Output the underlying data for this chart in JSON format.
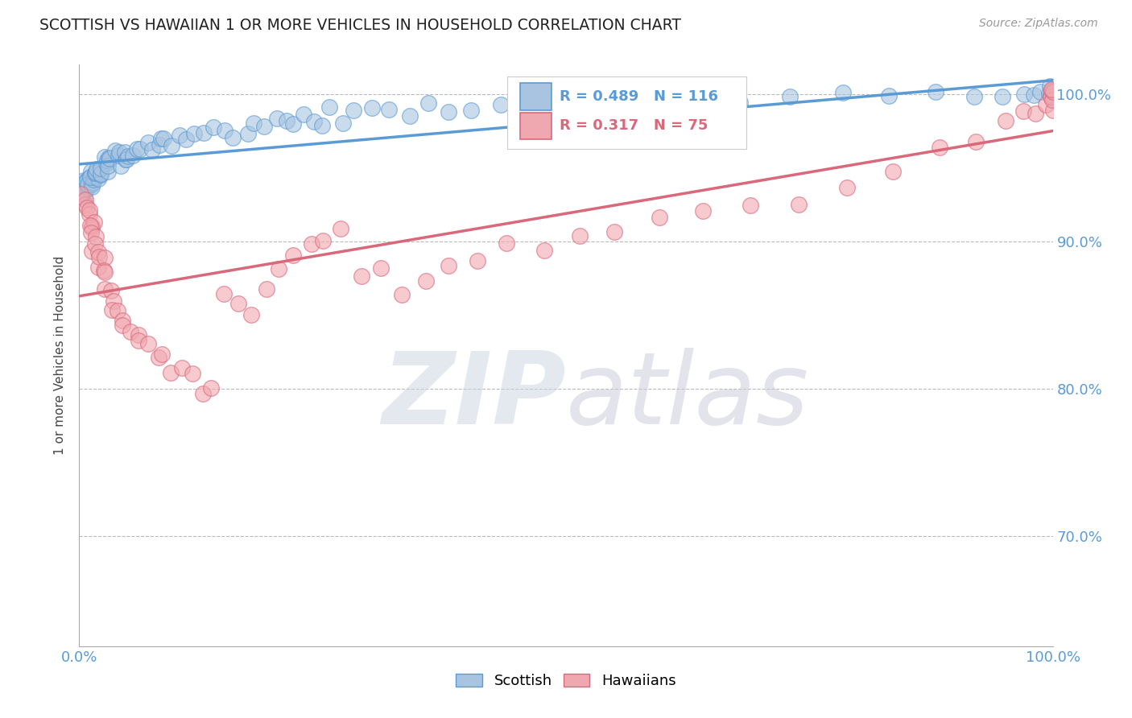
{
  "title": "SCOTTISH VS HAWAIIAN 1 OR MORE VEHICLES IN HOUSEHOLD CORRELATION CHART",
  "source_text": "Source: ZipAtlas.com",
  "ylabel": "1 or more Vehicles in Household",
  "legend_labels": [
    "Scottish",
    "Hawaiians"
  ],
  "r_scottish": 0.489,
  "n_scottish": 116,
  "r_hawaiian": 0.317,
  "n_hawaiian": 75,
  "scatter_color_scottish": "#a8c4e0",
  "scatter_color_hawaiian": "#f0a8b0",
  "line_color_scottish": "#5b9bd5",
  "line_color_hawaiian": "#d9687a",
  "xlim": [
    0.0,
    1.0
  ],
  "ylim": [
    0.625,
    1.02
  ],
  "yticks": [
    0.7,
    0.8,
    0.9,
    1.0
  ],
  "ytick_labels": [
    "70.0%",
    "80.0%",
    "90.0%",
    "100.0%"
  ],
  "background_color": "#ffffff",
  "grid_color": "#bbbbbb",
  "title_color": "#222222",
  "axis_label_color": "#5b9bd5",
  "axis_tick_color": "#5b9bd5",
  "watermark_color_zip": "#c8d4e0",
  "watermark_color_atlas": "#c8c8d8",
  "scottish_x": [
    0.002,
    0.003,
    0.004,
    0.004,
    0.005,
    0.005,
    0.006,
    0.006,
    0.007,
    0.007,
    0.008,
    0.008,
    0.009,
    0.009,
    0.01,
    0.01,
    0.011,
    0.011,
    0.012,
    0.012,
    0.013,
    0.013,
    0.014,
    0.014,
    0.015,
    0.015,
    0.016,
    0.016,
    0.017,
    0.017,
    0.018,
    0.019,
    0.02,
    0.021,
    0.022,
    0.023,
    0.024,
    0.025,
    0.026,
    0.027,
    0.028,
    0.029,
    0.03,
    0.032,
    0.033,
    0.035,
    0.036,
    0.038,
    0.04,
    0.042,
    0.044,
    0.046,
    0.048,
    0.05,
    0.055,
    0.06,
    0.065,
    0.07,
    0.075,
    0.08,
    0.085,
    0.09,
    0.095,
    0.1,
    0.11,
    0.12,
    0.13,
    0.14,
    0.15,
    0.16,
    0.17,
    0.18,
    0.19,
    0.2,
    0.21,
    0.22,
    0.23,
    0.24,
    0.25,
    0.26,
    0.27,
    0.28,
    0.3,
    0.32,
    0.34,
    0.36,
    0.38,
    0.4,
    0.43,
    0.46,
    0.5,
    0.54,
    0.58,
    0.63,
    0.68,
    0.73,
    0.78,
    0.83,
    0.88,
    0.92,
    0.95,
    0.97,
    0.98,
    0.99,
    0.995,
    0.998,
    0.999,
    1.0,
    1.0,
    1.0,
    1.0,
    1.0,
    1.0,
    1.0,
    1.0,
    1.0
  ],
  "scottish_y": [
    0.93,
    0.932,
    0.934,
    0.936,
    0.935,
    0.937,
    0.936,
    0.938,
    0.937,
    0.939,
    0.938,
    0.94,
    0.939,
    0.941,
    0.94,
    0.942,
    0.941,
    0.943,
    0.942,
    0.944,
    0.942,
    0.944,
    0.943,
    0.945,
    0.944,
    0.946,
    0.945,
    0.947,
    0.946,
    0.948,
    0.947,
    0.949,
    0.948,
    0.95,
    0.949,
    0.951,
    0.95,
    0.951,
    0.951,
    0.952,
    0.952,
    0.953,
    0.953,
    0.954,
    0.954,
    0.955,
    0.956,
    0.956,
    0.957,
    0.957,
    0.958,
    0.959,
    0.959,
    0.96,
    0.961,
    0.962,
    0.963,
    0.964,
    0.965,
    0.966,
    0.967,
    0.968,
    0.969,
    0.97,
    0.971,
    0.972,
    0.973,
    0.974,
    0.975,
    0.976,
    0.977,
    0.978,
    0.979,
    0.98,
    0.981,
    0.982,
    0.983,
    0.984,
    0.985,
    0.985,
    0.986,
    0.987,
    0.988,
    0.989,
    0.99,
    0.991,
    0.992,
    0.993,
    0.994,
    0.995,
    0.996,
    0.997,
    0.997,
    0.998,
    0.998,
    0.999,
    0.999,
    1.0,
    1.0,
    1.0,
    1.0,
    1.0,
    1.0,
    1.0,
    1.0,
    1.0,
    1.0,
    1.0,
    1.0,
    1.0,
    1.0,
    1.0,
    1.0,
    1.0,
    1.0,
    1.0
  ],
  "hawaiian_x": [
    0.003,
    0.005,
    0.006,
    0.007,
    0.008,
    0.009,
    0.01,
    0.011,
    0.012,
    0.013,
    0.014,
    0.015,
    0.016,
    0.017,
    0.018,
    0.019,
    0.02,
    0.022,
    0.024,
    0.026,
    0.028,
    0.03,
    0.033,
    0.036,
    0.04,
    0.044,
    0.048,
    0.053,
    0.058,
    0.064,
    0.07,
    0.078,
    0.086,
    0.095,
    0.105,
    0.115,
    0.126,
    0.138,
    0.15,
    0.163,
    0.177,
    0.19,
    0.205,
    0.22,
    0.235,
    0.25,
    0.27,
    0.29,
    0.31,
    0.33,
    0.355,
    0.38,
    0.41,
    0.44,
    0.475,
    0.51,
    0.55,
    0.595,
    0.64,
    0.69,
    0.74,
    0.79,
    0.84,
    0.885,
    0.92,
    0.95,
    0.97,
    0.983,
    0.992,
    0.997,
    1.0,
    1.0,
    1.0,
    1.0,
    1.0
  ],
  "hawaiian_y": [
    0.93,
    0.928,
    0.926,
    0.924,
    0.92,
    0.918,
    0.915,
    0.912,
    0.91,
    0.908,
    0.905,
    0.902,
    0.9,
    0.897,
    0.894,
    0.89,
    0.886,
    0.882,
    0.878,
    0.874,
    0.87,
    0.866,
    0.862,
    0.858,
    0.854,
    0.85,
    0.846,
    0.842,
    0.838,
    0.834,
    0.83,
    0.826,
    0.822,
    0.818,
    0.814,
    0.81,
    0.806,
    0.802,
    0.86,
    0.856,
    0.852,
    0.87,
    0.88,
    0.89,
    0.895,
    0.9,
    0.905,
    0.875,
    0.885,
    0.868,
    0.875,
    0.882,
    0.89,
    0.895,
    0.9,
    0.905,
    0.91,
    0.915,
    0.92,
    0.925,
    0.93,
    0.94,
    0.95,
    0.96,
    0.97,
    0.98,
    0.985,
    0.99,
    0.995,
    0.998,
    1.0,
    1.0,
    1.0,
    1.0,
    1.0
  ]
}
